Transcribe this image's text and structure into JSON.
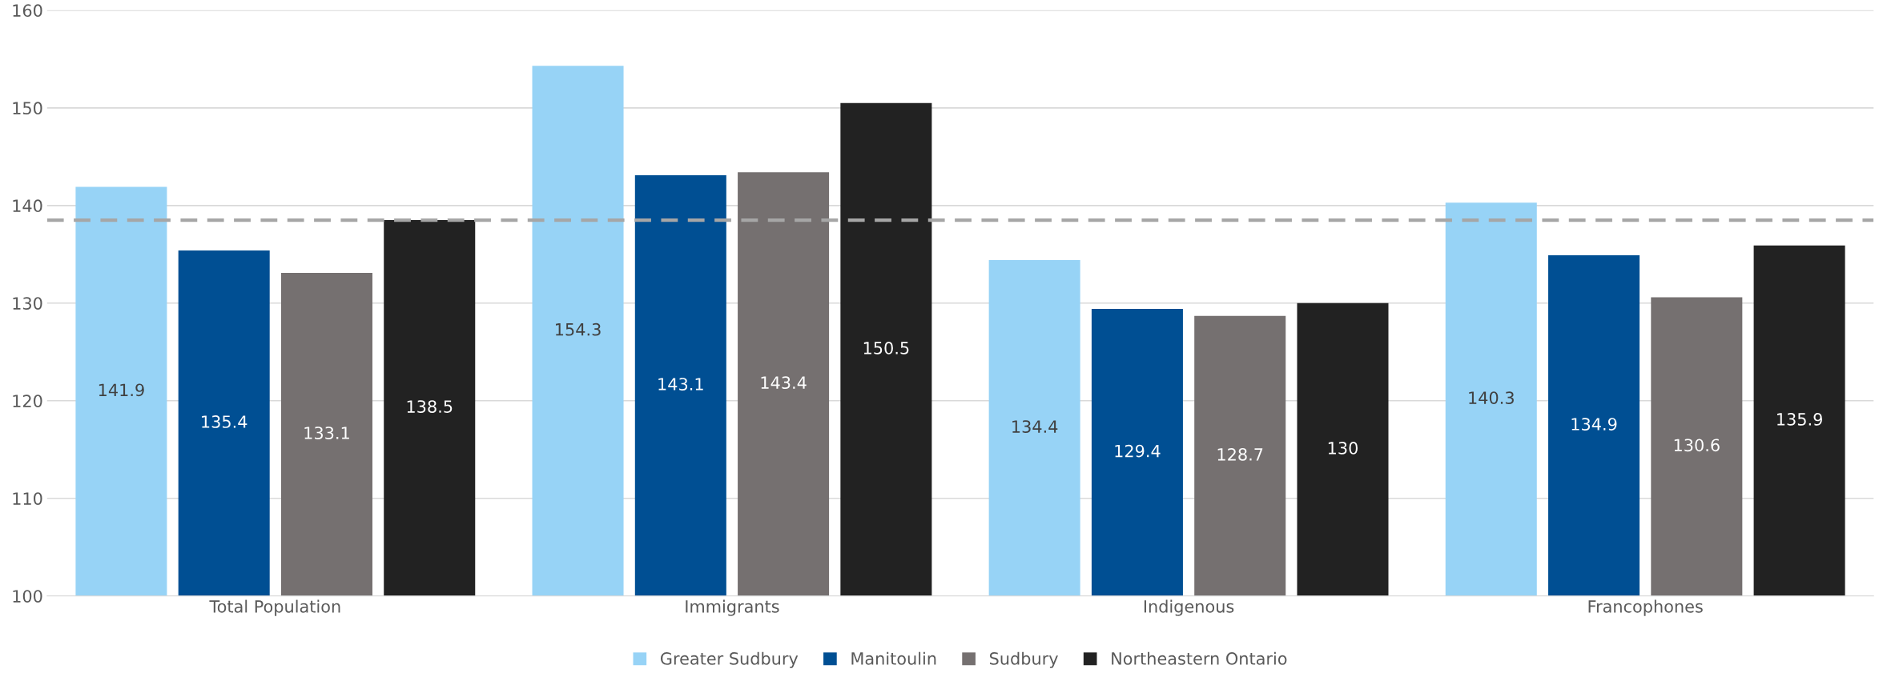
{
  "chart_data": {
    "type": "bar",
    "categories": [
      "Total Population",
      "Immigrants",
      "Indigenous",
      "Francophones"
    ],
    "series": [
      {
        "name": "Greater Sudbury",
        "color": "#97d3f6",
        "values": [
          141.9,
          154.3,
          134.4,
          140.3
        ]
      },
      {
        "name": "Manitoulin",
        "color": "#004f93",
        "values": [
          135.4,
          143.1,
          129.4,
          134.9
        ]
      },
      {
        "name": "Sudbury",
        "color": "#757070",
        "values": [
          133.1,
          143.4,
          128.7,
          130.6
        ]
      },
      {
        "name": "Northeastern Ontario",
        "color": "#222222",
        "values": [
          138.5,
          150.5,
          130,
          135.9
        ]
      }
    ],
    "ylim": [
      100,
      160
    ],
    "yticks": [
      100,
      110,
      120,
      130,
      140,
      150,
      160
    ],
    "grid": "y",
    "legend": "bottom",
    "data_labels": true,
    "ref_lines": [
      {
        "axis": "y",
        "value": 138.5,
        "color": "#a6a6a6",
        "line_style": "dashed"
      }
    ]
  }
}
